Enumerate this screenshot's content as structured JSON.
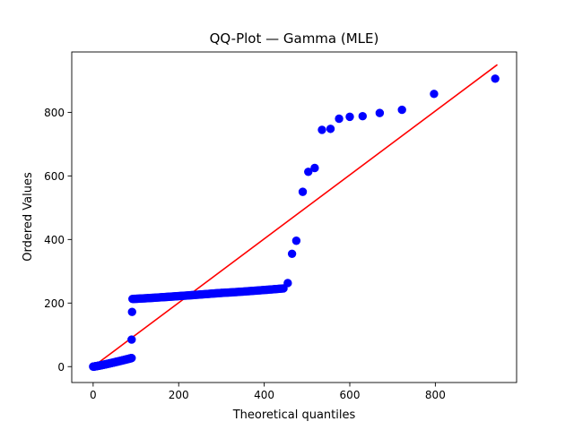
{
  "chart_data": {
    "type": "scatter",
    "title": "QQ-Plot — Gamma (MLE)",
    "xlabel": "Theoretical quantiles",
    "ylabel": "Ordered Values",
    "xlim": [
      -50,
      990
    ],
    "ylim": [
      -50,
      990
    ],
    "xticks": [
      0,
      200,
      400,
      600,
      800
    ],
    "yticks": [
      0,
      200,
      400,
      600,
      800
    ],
    "grid": false,
    "series": [
      {
        "marker": "circle",
        "color": "#0000ff",
        "clusters": [
          {
            "x_start": 0,
            "x_end": 90,
            "y_start": 0,
            "y_end": 27,
            "count": 140
          },
          {
            "x_start": 92,
            "x_end": 300,
            "y_start": 213,
            "y_end": 232,
            "count": 110
          },
          {
            "x_start": 300,
            "x_end": 445,
            "y_start": 232,
            "y_end": 246,
            "count": 60
          }
        ],
        "points": [
          {
            "x": 90,
            "y": 85
          },
          {
            "x": 91,
            "y": 172
          },
          {
            "x": 455,
            "y": 263
          },
          {
            "x": 465,
            "y": 355
          },
          {
            "x": 475,
            "y": 396
          },
          {
            "x": 490,
            "y": 550
          },
          {
            "x": 503,
            "y": 613
          },
          {
            "x": 518,
            "y": 625
          },
          {
            "x": 535,
            "y": 745
          },
          {
            "x": 555,
            "y": 748
          },
          {
            "x": 575,
            "y": 780
          },
          {
            "x": 600,
            "y": 786
          },
          {
            "x": 630,
            "y": 788
          },
          {
            "x": 670,
            "y": 798
          },
          {
            "x": 722,
            "y": 808
          },
          {
            "x": 797,
            "y": 858
          },
          {
            "x": 940,
            "y": 906
          }
        ]
      },
      {
        "type": "line",
        "color": "#ff0000",
        "x": [
          0,
          945
        ],
        "y": [
          0,
          950
        ]
      }
    ]
  }
}
